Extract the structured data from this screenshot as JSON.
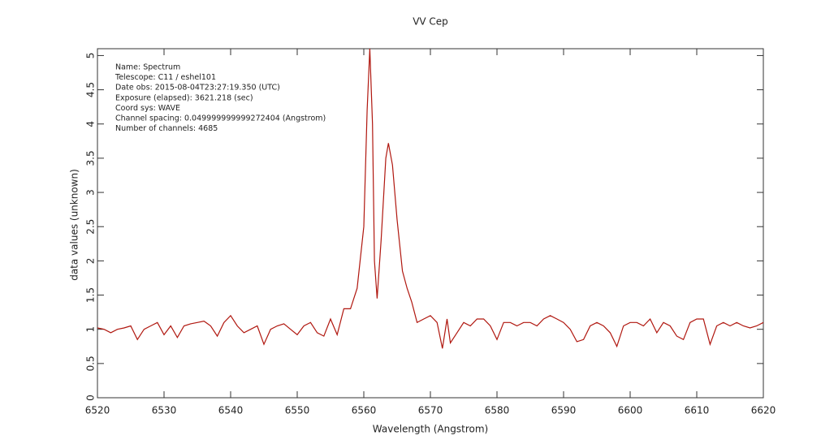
{
  "chart_data": {
    "type": "line",
    "title": "VV Cep",
    "x_label": "Wavelength (Angstrom)",
    "y_label": "data values (unknown)",
    "annotations": [
      "Name: Spectrum",
      "Telescope: C11 / eshel101",
      "Date obs: 2015-08-04T23:27:19.350 (UTC)",
      "Exposure (elapsed): 3621.218 (sec)",
      "Coord sys: WAVE",
      "Channel spacing: 0.049999999999272404 (Angstrom)",
      "Number of channels: 4685"
    ],
    "xlim": [
      6520,
      6620
    ],
    "xticks": [
      6520,
      6530,
      6540,
      6550,
      6560,
      6570,
      6580,
      6590,
      6600,
      6610,
      6620
    ],
    "ylim": [
      0,
      5.1
    ],
    "yticks": [
      0,
      0.5,
      1,
      1.5,
      2,
      2.5,
      3,
      3.5,
      4,
      4.5,
      5
    ],
    "series": [
      {
        "name": "Spectrum",
        "color": "#b0170f",
        "x": [
          6520,
          6521,
          6522,
          6523,
          6524,
          6525,
          6526,
          6527,
          6528,
          6529,
          6530,
          6531,
          6532,
          6533,
          6534,
          6535,
          6536,
          6537,
          6538,
          6539,
          6540,
          6541,
          6542,
          6543,
          6544,
          6545,
          6546,
          6547,
          6548,
          6549,
          6550,
          6551,
          6552,
          6553,
          6554,
          6555,
          6556,
          6557,
          6558,
          6559,
          6560,
          6560.5,
          6560.9,
          6561.3,
          6561.6,
          6562,
          6562.6,
          6563.3,
          6563.7,
          6564.3,
          6565,
          6565.8,
          6566.5,
          6567.2,
          6568,
          6569,
          6570,
          6571,
          6571.8,
          6572.5,
          6573,
          6574,
          6575,
          6576,
          6577,
          6578,
          6579,
          6580,
          6581,
          6582,
          6583,
          6584,
          6585,
          6586,
          6587,
          6588,
          6589,
          6590,
          6591,
          6592,
          6593,
          6594,
          6595,
          6596,
          6597,
          6598,
          6599,
          6600,
          6601,
          6602,
          6603,
          6604,
          6605,
          6606,
          6607,
          6608,
          6609,
          6610,
          6611,
          6612,
          6613,
          6614,
          6615,
          6616,
          6617,
          6618,
          6619,
          6620
        ],
        "values": [
          1.02,
          1.0,
          0.95,
          1.0,
          1.02,
          1.05,
          0.85,
          1.0,
          1.05,
          1.1,
          0.92,
          1.05,
          0.88,
          1.05,
          1.08,
          1.1,
          1.12,
          1.05,
          0.9,
          1.1,
          1.2,
          1.05,
          0.95,
          1.0,
          1.05,
          0.78,
          1.0,
          1.05,
          1.08,
          1.0,
          0.92,
          1.05,
          1.1,
          0.95,
          0.9,
          1.15,
          0.92,
          1.3,
          1.3,
          1.6,
          2.5,
          4.2,
          5.1,
          4.0,
          2.0,
          1.45,
          2.3,
          3.5,
          3.72,
          3.4,
          2.6,
          1.85,
          1.6,
          1.4,
          1.1,
          1.15,
          1.2,
          1.1,
          0.72,
          1.15,
          0.8,
          0.95,
          1.1,
          1.05,
          1.15,
          1.15,
          1.05,
          0.85,
          1.1,
          1.1,
          1.05,
          1.1,
          1.1,
          1.05,
          1.15,
          1.2,
          1.15,
          1.1,
          1.0,
          0.82,
          0.85,
          1.05,
          1.1,
          1.05,
          0.95,
          0.75,
          1.05,
          1.1,
          1.1,
          1.05,
          1.15,
          0.95,
          1.1,
          1.05,
          0.9,
          0.85,
          1.1,
          1.15,
          1.15,
          0.78,
          1.05,
          1.1,
          1.05,
          1.1,
          1.05,
          1.02,
          1.05,
          1.1
        ]
      }
    ]
  }
}
